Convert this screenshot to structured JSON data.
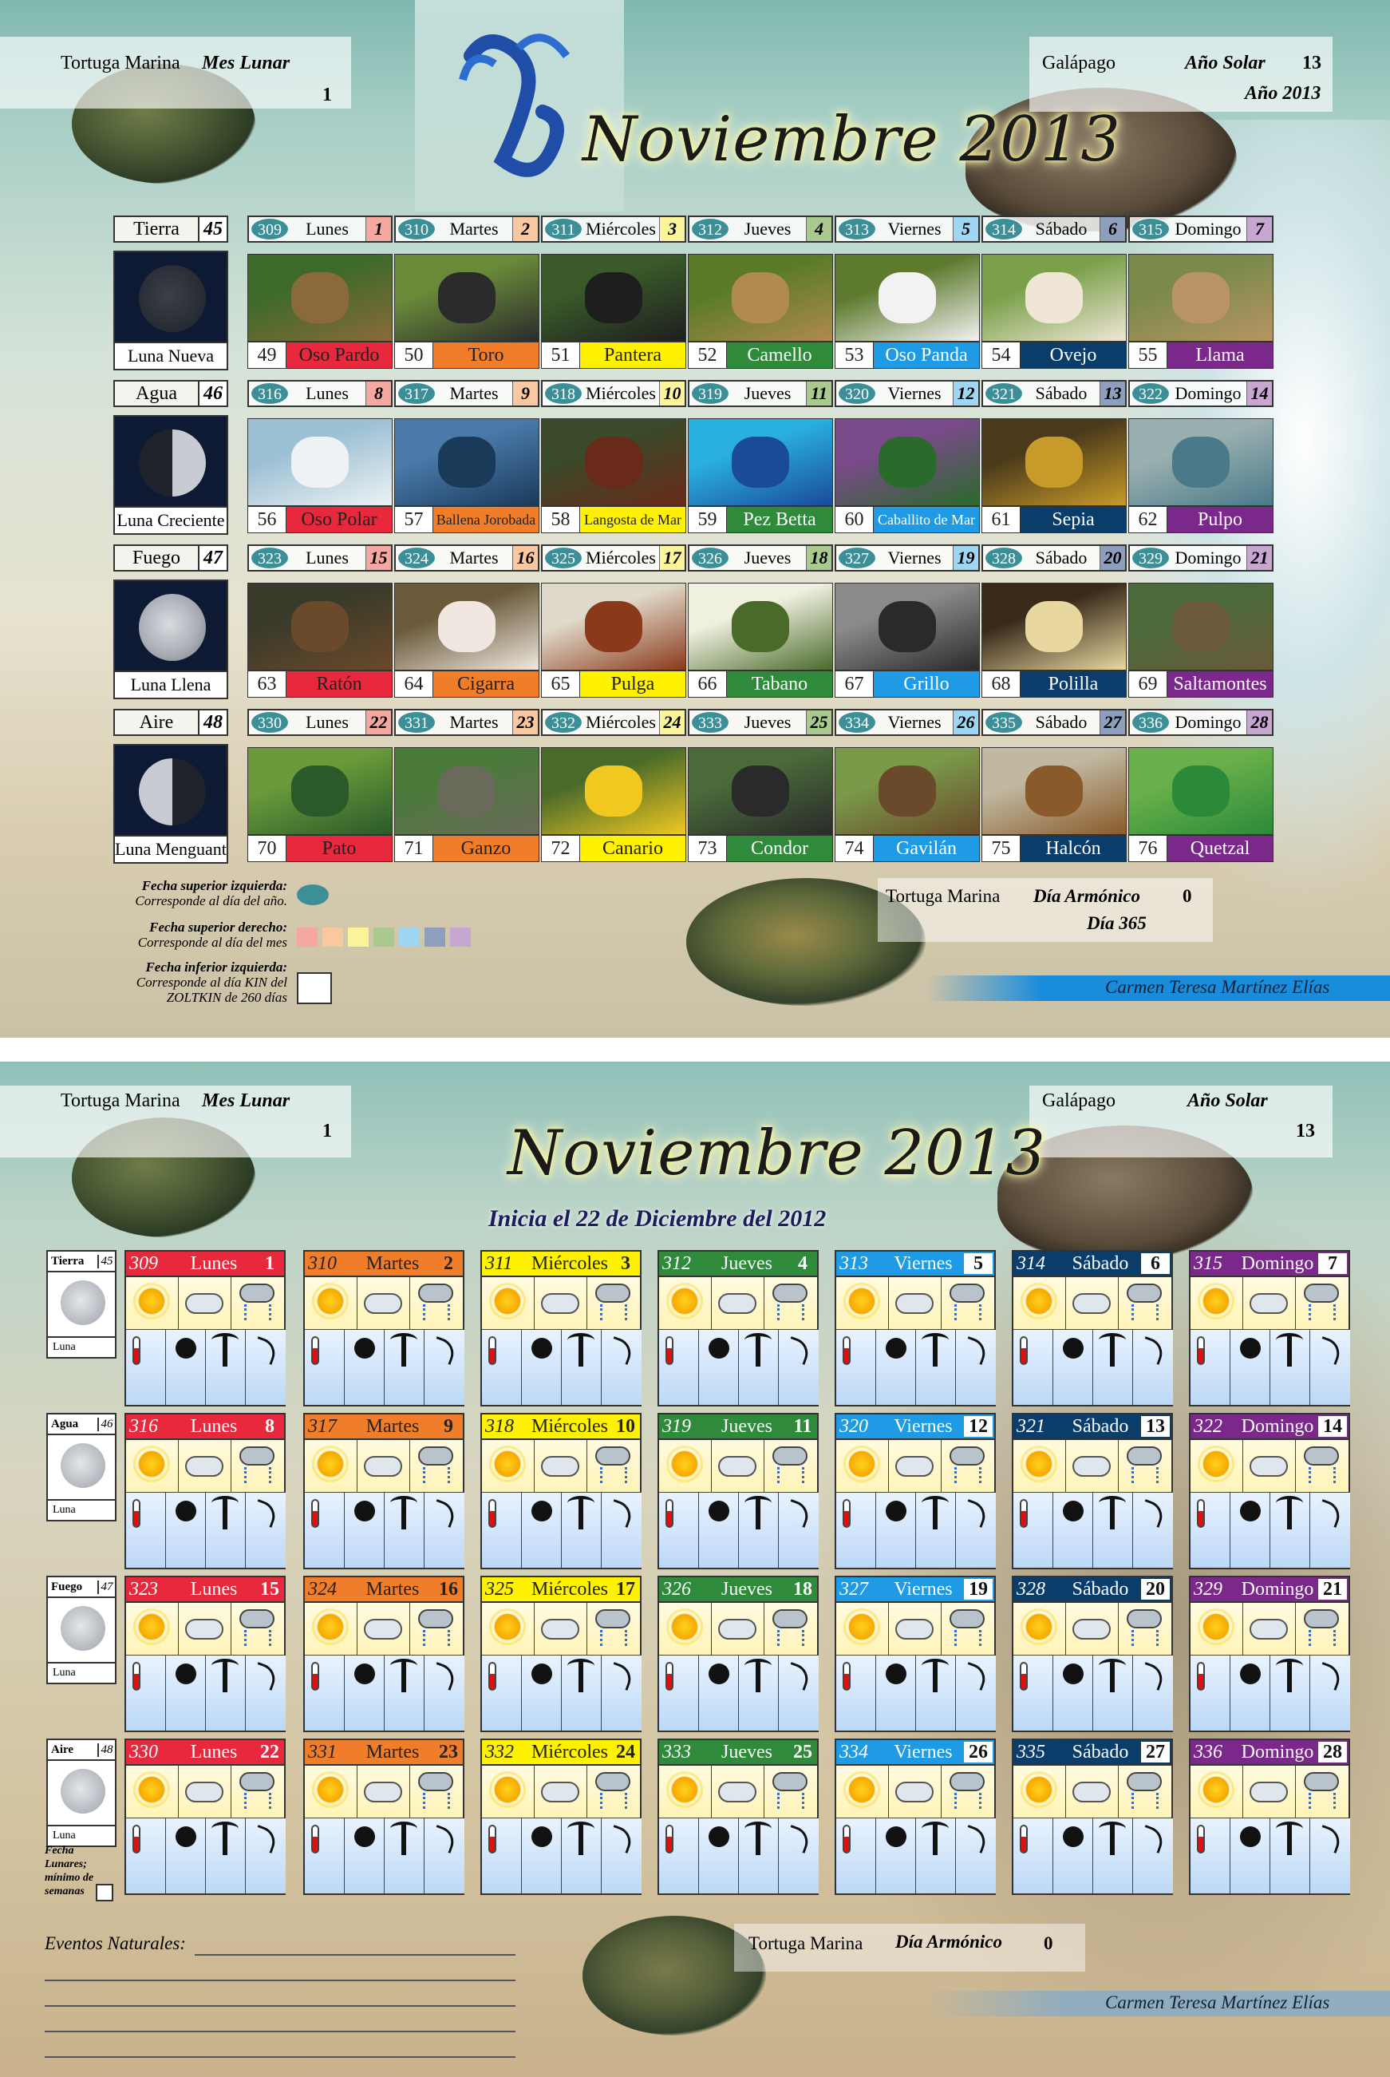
{
  "top": {
    "left_header": {
      "name": "Tortuga Marina",
      "label": "Mes Lunar",
      "num": "1"
    },
    "right_header": {
      "name": "Galápago",
      "label": "Año Solar",
      "num": "13",
      "year": "Año 2013"
    },
    "title": "Noviembre 2013",
    "rows": [
      {
        "element": "Tierra",
        "num": "45",
        "moon": "Luna Nueva",
        "days": [
          {
            "y": "309",
            "d": "Lunes",
            "m": "1"
          },
          {
            "y": "310",
            "d": "Martes",
            "m": "2"
          },
          {
            "y": "311",
            "d": "Miércoles",
            "m": "3"
          },
          {
            "y": "312",
            "d": "Jueves",
            "m": "4"
          },
          {
            "y": "313",
            "d": "Viernes",
            "m": "5"
          },
          {
            "y": "314",
            "d": "Sábado",
            "m": "6"
          },
          {
            "y": "315",
            "d": "Domingo",
            "m": "7"
          }
        ],
        "animals": [
          {
            "k": "49",
            "n": "Oso Pardo"
          },
          {
            "k": "50",
            "n": "Toro"
          },
          {
            "k": "51",
            "n": "Pantera"
          },
          {
            "k": "52",
            "n": "Camello"
          },
          {
            "k": "53",
            "n": "Oso Panda"
          },
          {
            "k": "54",
            "n": "Ovejo"
          },
          {
            "k": "55",
            "n": "Llama"
          }
        ]
      },
      {
        "element": "Agua",
        "num": "46",
        "moon": "Luna Creciente",
        "days": [
          {
            "y": "316",
            "d": "Lunes",
            "m": "8"
          },
          {
            "y": "317",
            "d": "Martes",
            "m": "9"
          },
          {
            "y": "318",
            "d": "Miércoles",
            "m": "10"
          },
          {
            "y": "319",
            "d": "Jueves",
            "m": "11"
          },
          {
            "y": "320",
            "d": "Viernes",
            "m": "12"
          },
          {
            "y": "321",
            "d": "Sábado",
            "m": "13"
          },
          {
            "y": "322",
            "d": "Domingo",
            "m": "14"
          }
        ],
        "animals": [
          {
            "k": "56",
            "n": "Oso Polar"
          },
          {
            "k": "57",
            "n": "Ballena Jorobada"
          },
          {
            "k": "58",
            "n": "Langosta de Mar"
          },
          {
            "k": "59",
            "n": "Pez Betta"
          },
          {
            "k": "60",
            "n": "Caballito de Mar"
          },
          {
            "k": "61",
            "n": "Sepia"
          },
          {
            "k": "62",
            "n": "Pulpo"
          }
        ]
      },
      {
        "element": "Fuego",
        "num": "47",
        "moon": "Luna Llena",
        "days": [
          {
            "y": "323",
            "d": "Lunes",
            "m": "15"
          },
          {
            "y": "324",
            "d": "Martes",
            "m": "16"
          },
          {
            "y": "325",
            "d": "Miércoles",
            "m": "17"
          },
          {
            "y": "326",
            "d": "Jueves",
            "m": "18"
          },
          {
            "y": "327",
            "d": "Viernes",
            "m": "19"
          },
          {
            "y": "328",
            "d": "Sábado",
            "m": "20"
          },
          {
            "y": "329",
            "d": "Domingo",
            "m": "21"
          }
        ],
        "animals": [
          {
            "k": "63",
            "n": "Ratón"
          },
          {
            "k": "64",
            "n": "Cigarra"
          },
          {
            "k": "65",
            "n": "Pulga"
          },
          {
            "k": "66",
            "n": "Tabano"
          },
          {
            "k": "67",
            "n": "Grillo"
          },
          {
            "k": "68",
            "n": "Polilla"
          },
          {
            "k": "69",
            "n": "Saltamontes"
          }
        ]
      },
      {
        "element": "Aire",
        "num": "48",
        "moon": "Luna Menguante",
        "days": [
          {
            "y": "330",
            "d": "Lunes",
            "m": "22"
          },
          {
            "y": "331",
            "d": "Martes",
            "m": "23"
          },
          {
            "y": "332",
            "d": "Miércoles",
            "m": "24"
          },
          {
            "y": "333",
            "d": "Jueves",
            "m": "25"
          },
          {
            "y": "334",
            "d": "Viernes",
            "m": "26"
          },
          {
            "y": "335",
            "d": "Sábado",
            "m": "27"
          },
          {
            "y": "336",
            "d": "Domingo",
            "m": "28"
          }
        ],
        "animals": [
          {
            "k": "70",
            "n": "Pato"
          },
          {
            "k": "71",
            "n": "Ganzo"
          },
          {
            "k": "72",
            "n": "Canario"
          },
          {
            "k": "73",
            "n": "Condor"
          },
          {
            "k": "74",
            "n": "Gavilán"
          },
          {
            "k": "75",
            "n": "Halcón"
          },
          {
            "k": "76",
            "n": "Quetzal"
          }
        ]
      }
    ],
    "legend": {
      "l1_title": "Fecha superior izquierda:",
      "l1_text": "Corresponde al día del año.",
      "l2_title": "Fecha superior derecho:",
      "l2_text": "Corresponde al día del mes",
      "l3_title": "Fecha inferior izquierda:",
      "l3_text1": "Corresponde al día KIN del",
      "l3_text2": "ZOLTKIN de 260 días"
    },
    "harmonic": {
      "name": "Tortuga Marina",
      "label": "Día Armónico",
      "num": "0",
      "day": "Día 365"
    },
    "author": "Carmen Teresa Martínez Elías"
  },
  "bottom": {
    "left_header": {
      "name": "Tortuga Marina",
      "label": "Mes Lunar",
      "num": "1"
    },
    "right_header": {
      "name": "Galápago",
      "label": "Año Solar",
      "num": "13"
    },
    "title": "Noviembre 2013",
    "subtitle": "Inicia el 22 de Diciembre del 2012",
    "luna_label": "Luna",
    "footnote": [
      "Fecha",
      "Lunares;",
      "mínimo de",
      "semanas"
    ],
    "events_label": "Eventos Naturales:",
    "harmonic": {
      "name": "Tortuga Marina",
      "label": "Día Armónico",
      "num": "0"
    },
    "author": "Carmen Teresa Martínez Elías"
  },
  "colors": {
    "day": [
      "#e8283c",
      "#f07d2a",
      "#fff200",
      "#2f8a3c",
      "#1e9be4",
      "#0b3d6b",
      "#7a2889"
    ],
    "day_light": [
      "#f4a8a0",
      "#f9c8a0",
      "#fbf49a",
      "#a9c98e",
      "#9ed6f4",
      "#8e9fbe",
      "#c8a6d2"
    ],
    "kin_oval": "#3c8e97"
  }
}
